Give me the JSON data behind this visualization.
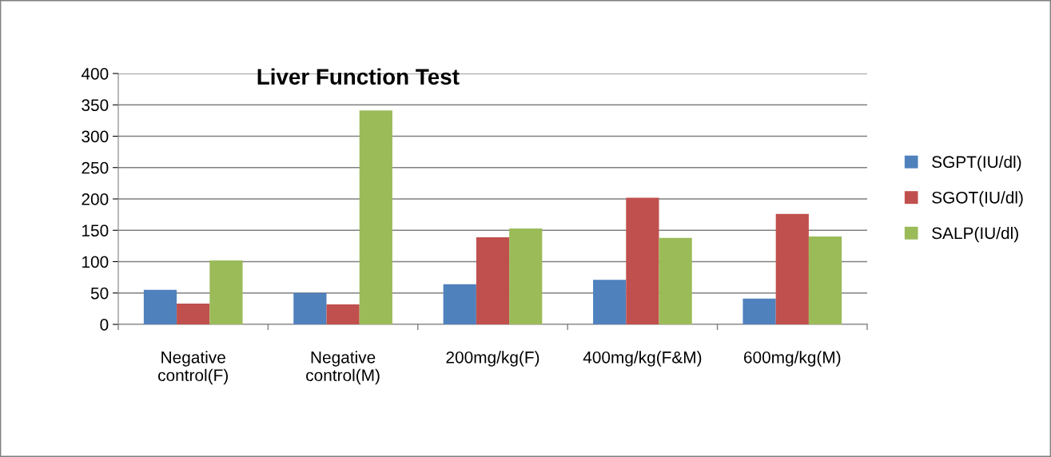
{
  "chart_data": {
    "type": "bar",
    "title": "Liver Function Test",
    "categories": [
      "Negative\ncontrol(F)",
      "Negative\ncontrol(M)",
      "200mg/kg(F)",
      "400mg/kg(F&M)",
      "600mg/kg(M)"
    ],
    "series": [
      {
        "name": "SGPT(IU/dl)",
        "color": "#4f81bd",
        "values": [
          55,
          50,
          64,
          71,
          41
        ]
      },
      {
        "name": "SGOT(IU/dl)",
        "color": "#c0504d",
        "values": [
          33,
          32,
          139,
          202,
          176
        ]
      },
      {
        "name": "SALP(IU/dl)",
        "color": "#9bbb59",
        "values": [
          102,
          341,
          153,
          138,
          140
        ]
      }
    ],
    "ylim": [
      0,
      400
    ],
    "yticks": [
      0,
      50,
      100,
      150,
      200,
      250,
      300,
      350,
      400
    ],
    "grid": "y",
    "legend": "right"
  }
}
